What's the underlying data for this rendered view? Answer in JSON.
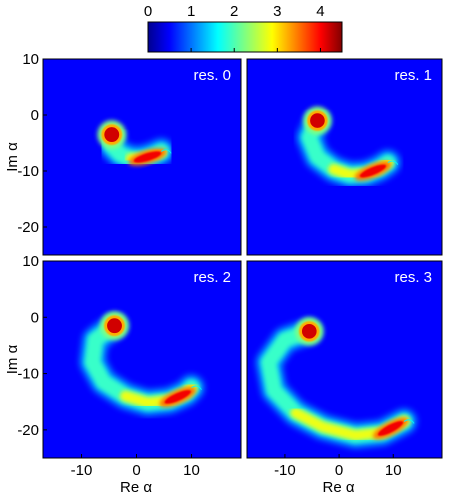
{
  "colorbar": {
    "ticks": [
      "0",
      "1",
      "2",
      "3",
      "4"
    ],
    "range": [
      0,
      4.5
    ],
    "colormap": "jet"
  },
  "chart_data": [
    {
      "type": "heatmap",
      "panel_label": "res. 0",
      "xlabel": "",
      "ylabel": "Im α",
      "xlim": [
        -17,
        19
      ],
      "ylim": [
        -25,
        10
      ],
      "x_ticks": [],
      "y_ticks": [
        "10",
        "0",
        "-10",
        "-20"
      ],
      "features": {
        "spot": {
          "center_re": -4.5,
          "center_im": -3.5,
          "peak": 4.5
        },
        "arc_points_re_im": [
          [
            -4.5,
            -3.5
          ],
          [
            -4.5,
            -5.5
          ],
          [
            -3,
            -7
          ],
          [
            -1,
            -7.8
          ],
          [
            1,
            -7.8
          ],
          [
            3,
            -7.2
          ],
          [
            4.5,
            -6.5
          ]
        ],
        "arc_peak": 4.0,
        "arc_end": {
          "re": 4.5,
          "im": -6.5
        }
      }
    },
    {
      "type": "heatmap",
      "panel_label": "res. 1",
      "xlabel": "",
      "ylabel": "",
      "xlim": [
        -17,
        19
      ],
      "ylim": [
        -25,
        10
      ],
      "x_ticks": [],
      "y_ticks": [],
      "features": {
        "spot": {
          "center_re": -4,
          "center_im": -1,
          "peak": 4.5
        },
        "arc_points_re_im": [
          [
            -4,
            -1
          ],
          [
            -5.5,
            -4
          ],
          [
            -4,
            -7.5
          ],
          [
            -1,
            -9.7
          ],
          [
            2,
            -10.7
          ],
          [
            5,
            -10.5
          ],
          [
            7.5,
            -9.5
          ],
          [
            9,
            -8.5
          ]
        ],
        "arc_peak": 4.0,
        "arc_end": {
          "re": 9,
          "im": -8.5
        }
      }
    },
    {
      "type": "heatmap",
      "panel_label": "res. 2",
      "xlabel": "Re α",
      "ylabel": "Im α",
      "xlim": [
        -17,
        19
      ],
      "ylim": [
        -25,
        10
      ],
      "x_ticks": [
        "-10",
        "0",
        "10"
      ],
      "y_ticks": [
        "10",
        "0",
        "-10",
        "-20"
      ],
      "features": {
        "spot": {
          "center_re": -4,
          "center_im": -1.5,
          "peak": 4.5
        },
        "arc_points_re_im": [
          [
            -4,
            -1.5
          ],
          [
            -7.5,
            -4
          ],
          [
            -8,
            -8
          ],
          [
            -6,
            -11.5
          ],
          [
            -2,
            -14
          ],
          [
            2,
            -15.2
          ],
          [
            6,
            -14.8
          ],
          [
            9,
            -13.5
          ],
          [
            10,
            -12.5
          ]
        ],
        "arc_peak": 4.0,
        "arc_end": {
          "re": 10,
          "im": -12.5
        }
      }
    },
    {
      "type": "heatmap",
      "panel_label": "res. 3",
      "xlabel": "Re α",
      "ylabel": "",
      "xlim": [
        -17,
        19
      ],
      "ylim": [
        -25,
        10
      ],
      "x_ticks": [
        "-10",
        "0",
        "10"
      ],
      "y_ticks": [],
      "features": {
        "spot": {
          "center_re": -5.5,
          "center_im": -2.5,
          "peak": 4.5
        },
        "arc_points_re_im": [
          [
            -5.5,
            -2.5
          ],
          [
            -10,
            -4
          ],
          [
            -13,
            -8
          ],
          [
            -12,
            -13
          ],
          [
            -8,
            -17
          ],
          [
            -3,
            -19.5
          ],
          [
            3,
            -21
          ],
          [
            8,
            -20.5
          ],
          [
            11,
            -19
          ],
          [
            12,
            -18.5
          ]
        ],
        "arc_peak": 4.0,
        "arc_end": {
          "re": 12,
          "im": -18.5
        }
      }
    }
  ]
}
